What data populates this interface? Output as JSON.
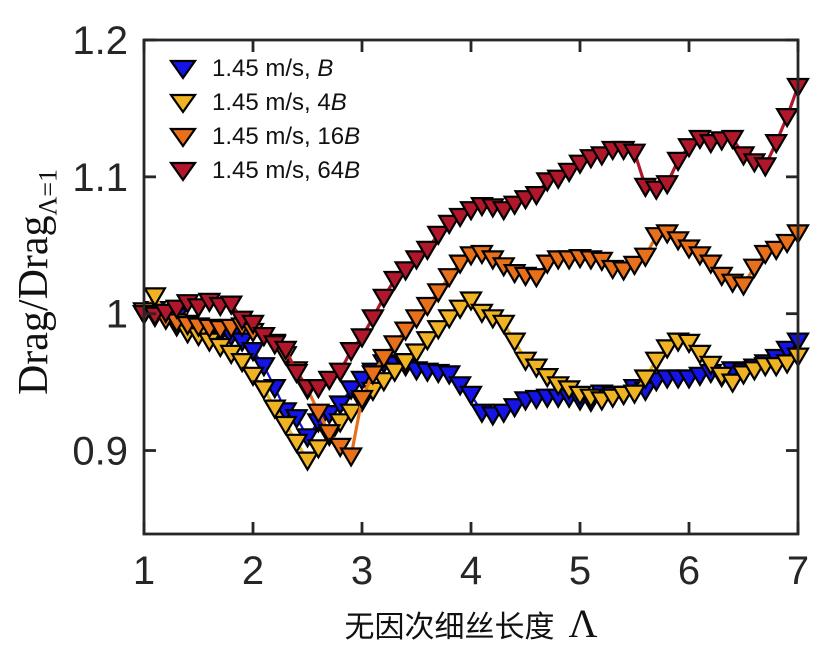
{
  "chart_data": {
    "type": "line",
    "title": "",
    "xlabel_cjk": "无因次细丝长度",
    "xlabel_symbol": "Λ",
    "ylabel_main": "Drag/Drag",
    "ylabel_sub": "Λ=1",
    "xlim": [
      1,
      7
    ],
    "ylim": [
      0.839,
      1.2
    ],
    "x_ticks": [
      1,
      2,
      3,
      4,
      5,
      6,
      7
    ],
    "y_ticks": [
      0.9,
      1.0,
      1.1,
      1.2
    ],
    "y_tick_labels": [
      "0.9",
      "1",
      "1.1",
      "1.2"
    ],
    "x_start": 1.0,
    "x_step": 0.1,
    "grid": false,
    "legend_position": "top-left-inside",
    "axis_color": "#262626",
    "marker": "triangle-down",
    "series": [
      {
        "name": "B",
        "label_prefix": "1.45 m/s, ",
        "label_italic": "B",
        "color": "#1414e6",
        "line_width": 2.2,
        "values": [
          1.0,
          1.003,
          0.997,
          0.998,
          0.993,
          0.99,
          0.988,
          0.986,
          0.984,
          0.98,
          0.973,
          0.962,
          0.946,
          0.929,
          0.924,
          0.91,
          0.921,
          0.927,
          0.934,
          0.945,
          0.952,
          0.958,
          0.964,
          0.963,
          0.962,
          0.959,
          0.958,
          0.957,
          0.956,
          0.948,
          0.941,
          0.928,
          0.926,
          0.928,
          0.932,
          0.937,
          0.938,
          0.939,
          0.939,
          0.939,
          0.937,
          0.936,
          0.942,
          0.941,
          0.941,
          0.946,
          0.944,
          0.951,
          0.953,
          0.953,
          0.953,
          0.955,
          0.957,
          0.954,
          0.959,
          0.958,
          0.961,
          0.964,
          0.968,
          0.974,
          0.98
        ]
      },
      {
        "name": "4B",
        "label_prefix": "1.45 m/s, 4",
        "label_italic": "B",
        "color": "#f0b323",
        "line_width": 3.2,
        "values": [
          1.002,
          1.013,
          0.998,
          0.991,
          0.986,
          0.984,
          0.98,
          0.976,
          0.971,
          0.965,
          0.955,
          0.945,
          0.931,
          0.919,
          0.906,
          0.893,
          0.902,
          0.911,
          0.921,
          0.928,
          0.936,
          0.944,
          0.951,
          0.958,
          0.965,
          0.972,
          0.981,
          0.989,
          0.997,
          1.004,
          1.01,
          1.001,
          0.997,
          0.993,
          0.98,
          0.966,
          0.961,
          0.954,
          0.948,
          0.945,
          0.941,
          0.939,
          0.937,
          0.939,
          0.941,
          0.942,
          0.953,
          0.966,
          0.975,
          0.98,
          0.979,
          0.971,
          0.963,
          0.955,
          0.95,
          0.956,
          0.959,
          0.962,
          0.962,
          0.964,
          0.969
        ]
      },
      {
        "name": "16B",
        "label_prefix": "1.45 m/s, 16",
        "label_italic": "B",
        "color": "#e8701a",
        "line_width": 3.2,
        "values": [
          1.0,
          0.998,
          0.996,
          0.994,
          0.992,
          0.991,
          0.99,
          0.989,
          0.99,
          0.991,
          0.987,
          0.984,
          0.979,
          0.97,
          0.959,
          0.945,
          0.928,
          0.913,
          0.903,
          0.896,
          0.938,
          0.956,
          0.968,
          0.978,
          0.988,
          0.997,
          1.006,
          1.016,
          1.027,
          1.037,
          1.043,
          1.044,
          1.04,
          1.035,
          1.03,
          1.028,
          1.027,
          1.037,
          1.04,
          1.04,
          1.041,
          1.04,
          1.039,
          1.033,
          1.032,
          1.036,
          1.042,
          1.057,
          1.059,
          1.054,
          1.048,
          1.043,
          1.037,
          1.028,
          1.023,
          1.021,
          1.034,
          1.044,
          1.047,
          1.052,
          1.059
        ]
      },
      {
        "name": "64B",
        "label_prefix": "1.45 m/s, 64",
        "label_italic": "B",
        "color": "#b0172b",
        "line_width": 3.2,
        "values": [
          1.0,
          0.999,
          1.001,
          1.004,
          1.008,
          1.005,
          1.009,
          1.006,
          1.007,
          0.996,
          0.993,
          0.984,
          0.978,
          0.974,
          0.957,
          0.946,
          0.946,
          0.952,
          0.958,
          0.973,
          0.983,
          0.997,
          1.012,
          1.025,
          1.032,
          1.04,
          1.047,
          1.058,
          1.066,
          1.071,
          1.076,
          1.079,
          1.078,
          1.076,
          1.08,
          1.084,
          1.087,
          1.097,
          1.099,
          1.104,
          1.11,
          1.114,
          1.116,
          1.12,
          1.12,
          1.118,
          1.093,
          1.091,
          1.095,
          1.112,
          1.122,
          1.128,
          1.125,
          1.127,
          1.128,
          1.116,
          1.111,
          1.108,
          1.125,
          1.144,
          1.166
        ]
      }
    ]
  }
}
